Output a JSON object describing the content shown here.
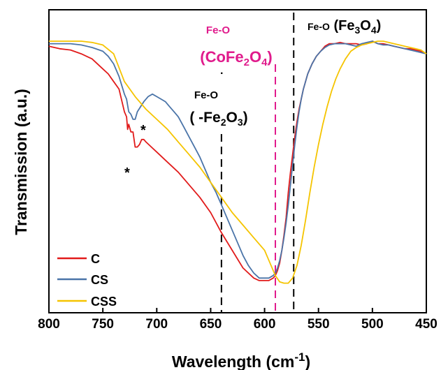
{
  "chart_data": {
    "type": "line",
    "xlabel": "Wavelength (cm",
    "xlabel_sup": "-1",
    "xlabel_end": ")",
    "ylabel": "Transmission (a.u.)",
    "xlim": [
      800,
      450
    ],
    "ylim": [
      0,
      1
    ],
    "x_reversed": true,
    "grid": false,
    "legend_placement": "lower-left",
    "xticks": [
      800,
      750,
      700,
      650,
      600,
      550,
      500,
      450
    ],
    "xtick_labels": [
      "800",
      "750",
      "700",
      "650",
      "600",
      "550",
      "500",
      "450"
    ],
    "series": [
      {
        "name": "C",
        "color": "#e11b1b",
        "x": [
          800,
          790,
          780,
          770,
          760,
          750,
          745,
          740,
          735,
          730,
          728,
          727,
          726,
          724,
          722,
          720,
          718,
          716,
          714,
          712,
          710,
          705,
          700,
          690,
          680,
          670,
          660,
          650,
          640,
          630,
          620,
          610,
          605,
          600,
          596,
          592,
          590,
          588,
          586,
          584,
          582,
          580,
          578,
          576,
          574,
          572,
          570,
          568,
          566,
          564,
          562,
          560,
          556,
          552,
          548,
          544,
          540,
          535,
          530,
          525,
          520,
          515,
          510,
          505,
          500,
          495,
          490,
          485,
          480,
          475,
          470,
          465,
          460,
          455,
          450
        ],
        "y": [
          0.98,
          0.97,
          0.965,
          0.95,
          0.93,
          0.89,
          0.87,
          0.84,
          0.81,
          0.72,
          0.7,
          0.65,
          0.67,
          0.64,
          0.64,
          0.58,
          0.58,
          0.59,
          0.61,
          0.61,
          0.6,
          0.58,
          0.56,
          0.52,
          0.48,
          0.43,
          0.38,
          0.32,
          0.24,
          0.17,
          0.1,
          0.06,
          0.05,
          0.05,
          0.05,
          0.06,
          0.07,
          0.09,
          0.12,
          0.17,
          0.23,
          0.3,
          0.4,
          0.48,
          0.55,
          0.62,
          0.68,
          0.73,
          0.77,
          0.81,
          0.84,
          0.87,
          0.91,
          0.94,
          0.96,
          0.98,
          0.99,
          0.99,
          0.995,
          0.99,
          0.99,
          0.99,
          0.985,
          0.99,
          1.0,
          0.99,
          0.99,
          0.985,
          0.98,
          0.975,
          0.97,
          0.97,
          0.965,
          0.96,
          0.95
        ]
      },
      {
        "name": "CS",
        "color": "#4a74a8",
        "x": [
          800,
          790,
          780,
          770,
          760,
          750,
          745,
          740,
          735,
          730,
          728,
          726,
          724,
          722,
          720,
          718,
          715,
          712,
          708,
          704,
          700,
          696,
          692,
          688,
          684,
          680,
          675,
          670,
          665,
          660,
          655,
          650,
          645,
          640,
          635,
          630,
          625,
          620,
          615,
          610,
          605,
          600,
          596,
          592,
          590,
          588,
          586,
          584,
          582,
          580,
          578,
          576,
          574,
          572,
          570,
          568,
          566,
          564,
          562,
          560,
          556,
          552,
          548,
          544,
          540,
          535,
          530,
          525,
          520,
          515,
          510,
          505,
          500,
          495,
          490,
          485,
          480,
          475,
          470,
          465,
          460,
          455,
          450
        ],
        "y": [
          0.99,
          0.99,
          0.99,
          0.985,
          0.975,
          0.96,
          0.94,
          0.91,
          0.86,
          0.79,
          0.77,
          0.72,
          0.71,
          0.69,
          0.69,
          0.72,
          0.74,
          0.76,
          0.78,
          0.79,
          0.78,
          0.77,
          0.76,
          0.74,
          0.72,
          0.7,
          0.66,
          0.62,
          0.58,
          0.54,
          0.49,
          0.44,
          0.4,
          0.35,
          0.3,
          0.25,
          0.2,
          0.15,
          0.11,
          0.08,
          0.06,
          0.06,
          0.06,
          0.07,
          0.08,
          0.1,
          0.13,
          0.17,
          0.22,
          0.28,
          0.35,
          0.43,
          0.51,
          0.59,
          0.66,
          0.72,
          0.77,
          0.81,
          0.84,
          0.87,
          0.91,
          0.94,
          0.96,
          0.975,
          0.985,
          0.99,
          0.99,
          0.99,
          0.985,
          0.98,
          0.99,
          0.995,
          1.0,
          0.99,
          0.985,
          0.985,
          0.98,
          0.975,
          0.97,
          0.965,
          0.96,
          0.955,
          0.95
        ]
      },
      {
        "name": "CSS",
        "color": "#f5c400",
        "x": [
          800,
          790,
          780,
          770,
          760,
          750,
          740,
          730,
          720,
          710,
          700,
          690,
          680,
          670,
          660,
          650,
          640,
          630,
          620,
          610,
          600,
          595,
          590,
          586,
          582,
          578,
          574,
          570,
          566,
          562,
          558,
          554,
          550,
          546,
          542,
          538,
          534,
          530,
          525,
          520,
          515,
          510,
          505,
          500,
          495,
          490,
          485,
          480,
          475,
          470,
          465,
          460,
          455,
          450
        ],
        "y": [
          1.0,
          1.0,
          1.0,
          1.0,
          0.995,
          0.985,
          0.95,
          0.84,
          0.78,
          0.73,
          0.69,
          0.65,
          0.6,
          0.55,
          0.5,
          0.44,
          0.38,
          0.32,
          0.27,
          0.22,
          0.17,
          0.12,
          0.07,
          0.045,
          0.04,
          0.04,
          0.06,
          0.11,
          0.19,
          0.29,
          0.4,
          0.5,
          0.59,
          0.67,
          0.74,
          0.8,
          0.85,
          0.89,
          0.93,
          0.96,
          0.975,
          0.985,
          0.99,
          0.995,
          1.0,
          1.0,
          0.995,
          0.99,
          0.985,
          0.98,
          0.975,
          0.97,
          0.965,
          0.95
        ]
      }
    ],
    "reference_lines": [
      {
        "x": 640,
        "color": "#000000"
      },
      {
        "x": 590,
        "color": "#e01b8c"
      },
      {
        "x": 573,
        "color": "#000000"
      }
    ],
    "annotations": [
      {
        "id": "fe2o3",
        "line1": "Fe-O",
        "line2_prefix": "( -Fe",
        "sub1": "2",
        "mid": "O",
        "sub2": "3",
        "suffix": ")",
        "color": "#000000"
      },
      {
        "id": "cofe2o4",
        "line1": "Fe-O",
        "line2_prefix": "(CoFe",
        "sub1": "2",
        "mid": "O",
        "sub2": "4",
        "suffix": ")",
        "color": "#e01b8c"
      },
      {
        "id": "fe3o4",
        "line1": "Fe-O",
        "line2_prefix": "(Fe",
        "sub1": "3",
        "mid": "O",
        "sub2": "4",
        "suffix": ")",
        "color": "#000000"
      },
      {
        "id": "star-cs",
        "text": "*",
        "color": "#000000"
      },
      {
        "id": "star-c",
        "text": "*",
        "color": "#000000"
      },
      {
        "id": "dot",
        "text": "·",
        "color": "#000000"
      }
    ]
  }
}
